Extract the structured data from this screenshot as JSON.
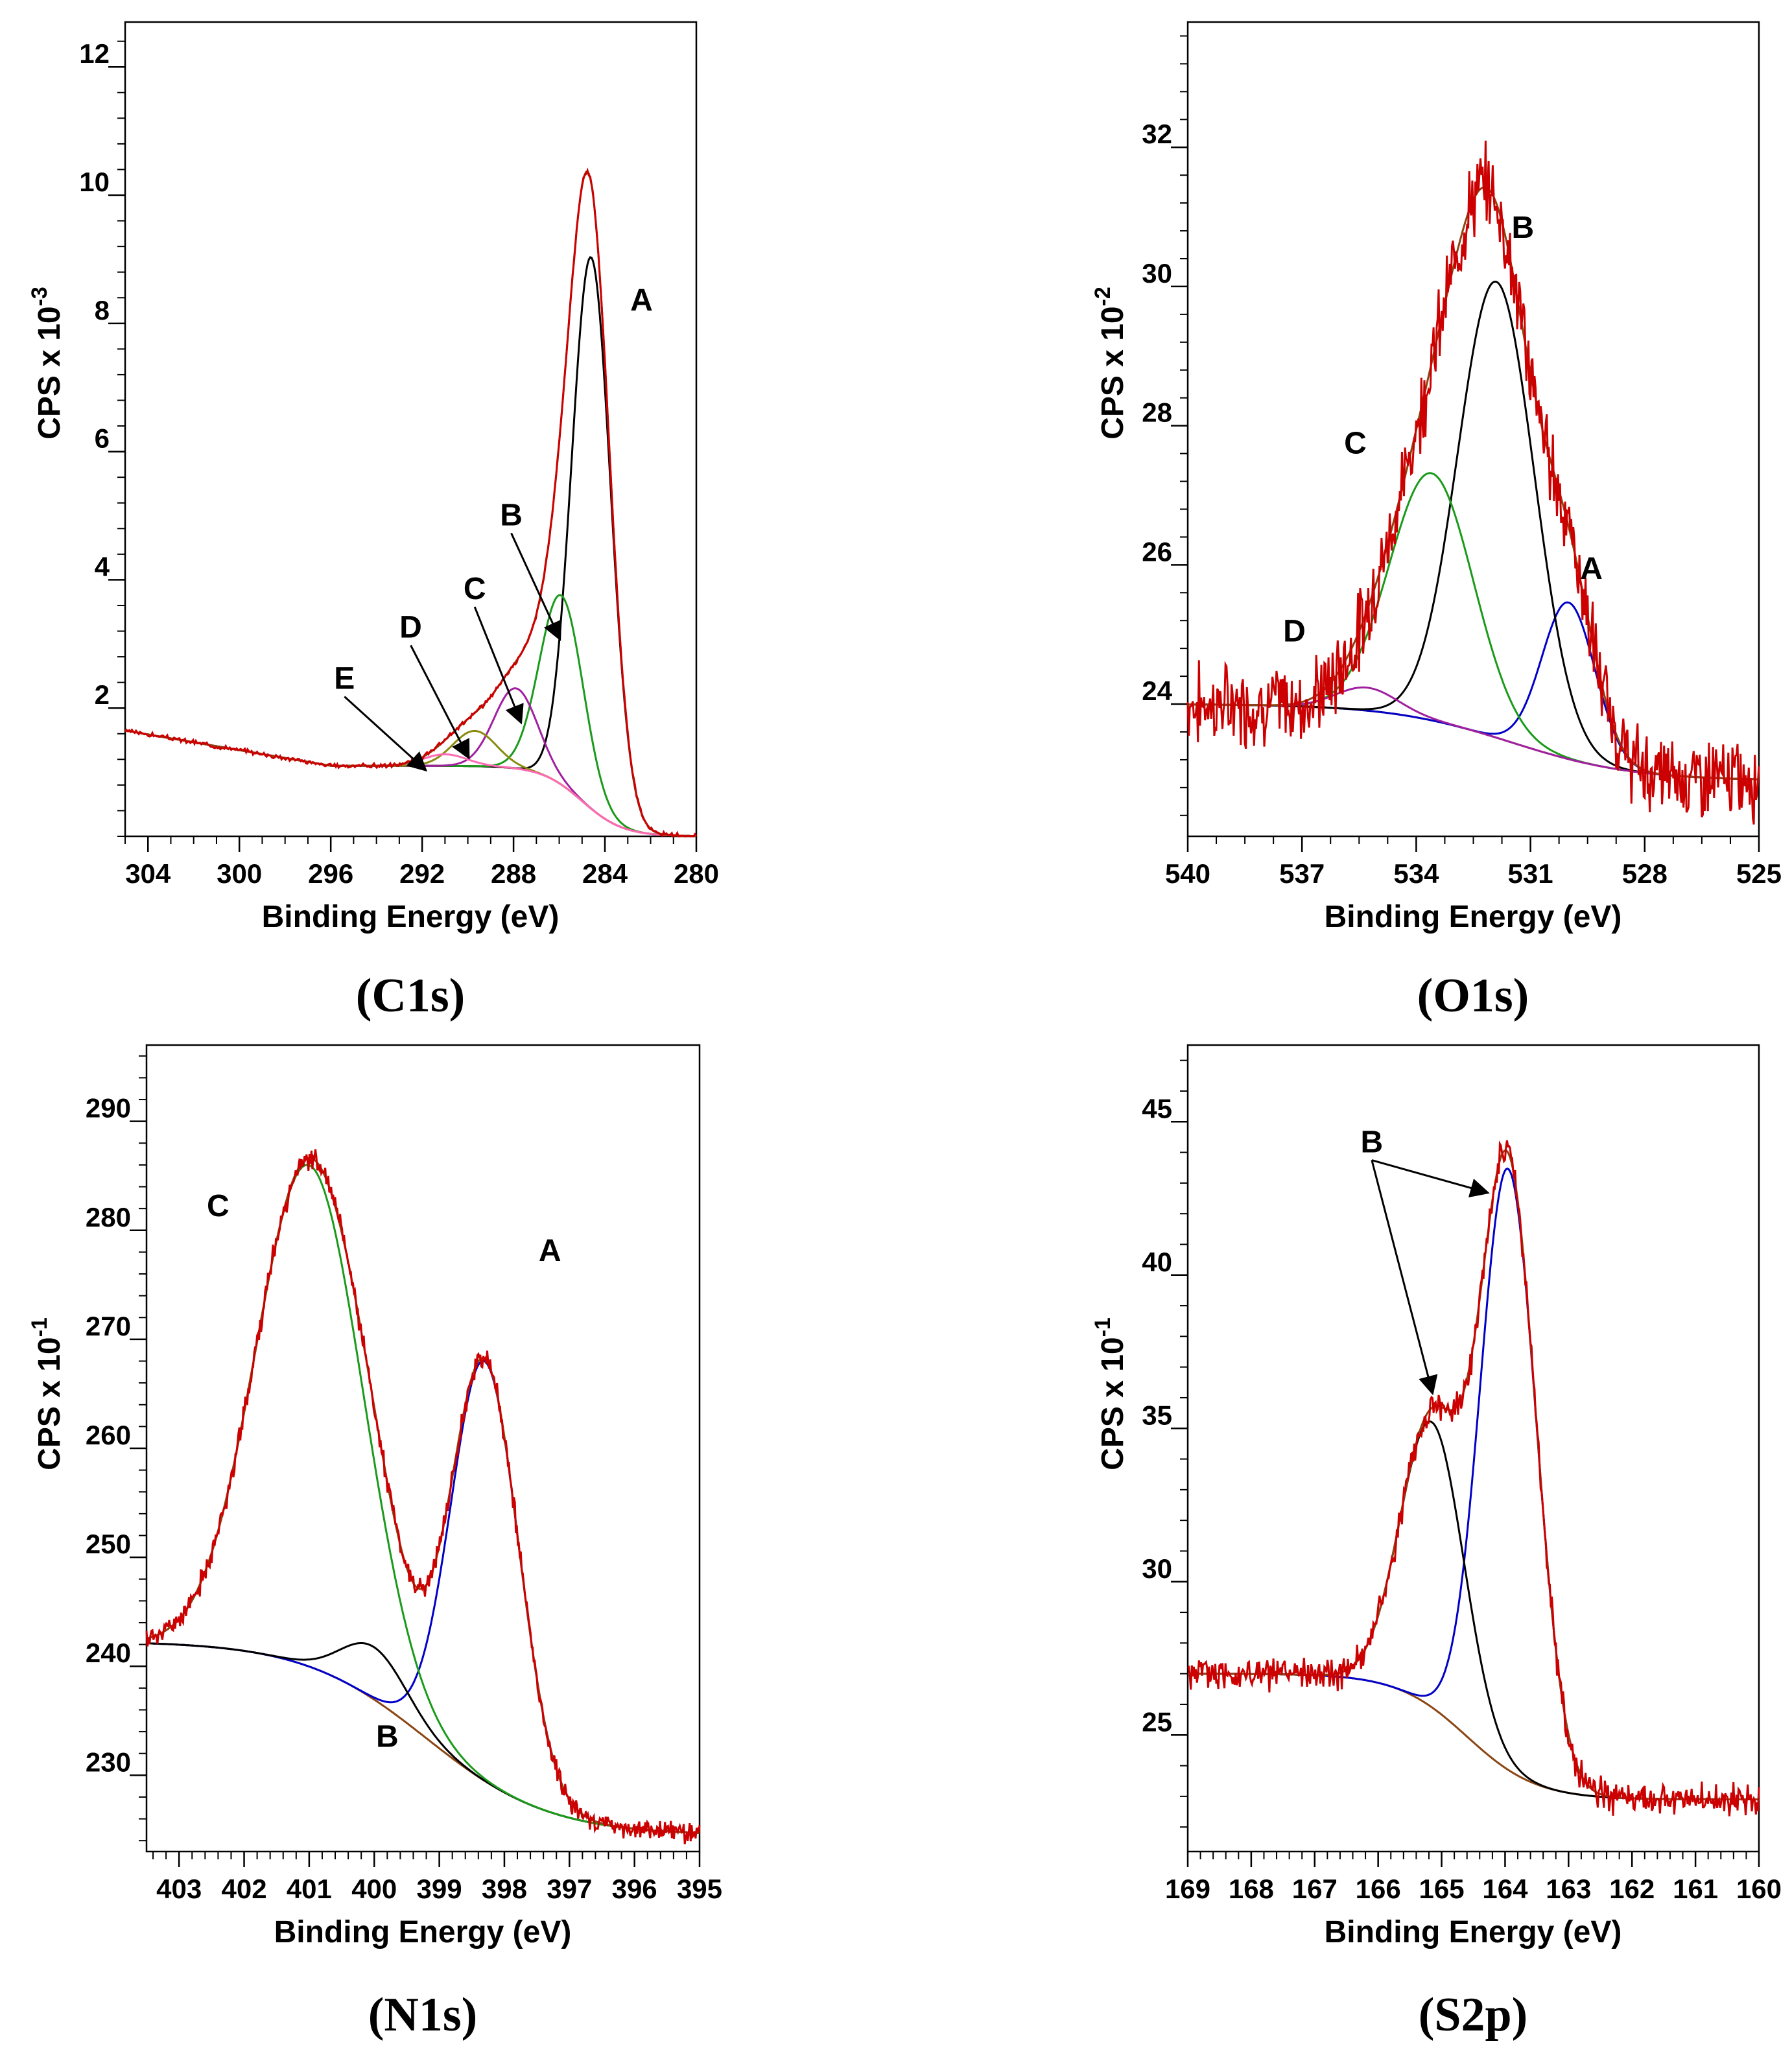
{
  "charts": [
    {
      "id": "c1s",
      "type": "line",
      "caption": "(C1s)",
      "xlabel": "Binding Energy (eV)",
      "ylabel": "CPS x 10",
      "ylabel_exp": "-3",
      "xlim": [
        305,
        280
      ],
      "ylim": [
        0,
        12.7
      ],
      "xticks": [
        304,
        300,
        296,
        292,
        288,
        284,
        280
      ],
      "yticks": [
        2,
        4,
        6,
        8,
        10,
        12
      ],
      "peaks": [
        {
          "label": "A",
          "center": 284.6,
          "height": 8.6,
          "width": 0.85,
          "color": "#000000"
        },
        {
          "label": "B",
          "center": 285.9,
          "height": 2.95,
          "width": 0.95,
          "color": "#1a9a1a"
        },
        {
          "label": "C",
          "center": 287.9,
          "height": 1.25,
          "width": 0.95,
          "color": "#a020a0"
        },
        {
          "label": "D",
          "center": 289.7,
          "height": 0.55,
          "width": 0.95,
          "color": "#8a8a10"
        },
        {
          "label": "E",
          "center": 291.0,
          "height": 0.18,
          "width": 0.95,
          "color": "#ff69b4"
        }
      ],
      "background": {
        "left": 1.1,
        "right": 0.0,
        "step_center": 285.0,
        "step_width": 0.9,
        "slope_from": 296,
        "slope_to": 305,
        "slope_gain": 0.55
      },
      "annotations": [
        {
          "label": "A",
          "at": [
            282.4,
            8.2
          ]
        },
        {
          "label": "B",
          "at": [
            288.1,
            4.85
          ],
          "arrow_to": [
            286.0,
            3.1
          ]
        },
        {
          "label": "C",
          "at": [
            289.7,
            3.7
          ],
          "arrow_to": [
            287.7,
            1.8
          ]
        },
        {
          "label": "D",
          "at": [
            292.5,
            3.1
          ],
          "arrow_to": [
            290.0,
            1.25
          ]
        },
        {
          "label": "E",
          "at": [
            295.4,
            2.3
          ],
          "arrow_to": [
            291.9,
            1.05
          ]
        }
      ]
    },
    {
      "id": "o1s",
      "type": "line",
      "caption": "(O1s)",
      "xlabel": "Binding Energy (eV)",
      "ylabel": "CPS x 10",
      "ylabel_exp": "-2",
      "xlim": [
        540,
        525
      ],
      "ylim": [
        22.1,
        33.8
      ],
      "xticks": [
        540,
        537,
        534,
        531,
        528,
        525
      ],
      "yticks": [
        24,
        26,
        28,
        30,
        32
      ],
      "peaks": [
        {
          "label": "A",
          "center": 530.0,
          "height": 2.25,
          "width": 0.7,
          "color": "#0000c8"
        },
        {
          "label": "B",
          "center": 531.9,
          "height": 6.55,
          "width": 1.0,
          "color": "#000000"
        },
        {
          "label": "C",
          "center": 533.6,
          "height": 3.55,
          "width": 1.1,
          "color": "#1a9a1a"
        },
        {
          "label": "D",
          "center": 535.3,
          "height": 0.33,
          "width": 0.8,
          "color": "#a020a0"
        }
      ],
      "background": {
        "left": 24.0,
        "right": 22.9,
        "step_center": 531.5,
        "step_width": 1.6
      },
      "noise": {
        "level": 0.5,
        "seed": 7
      },
      "annotations": [
        {
          "label": "A",
          "at": [
            529.4,
            25.8
          ]
        },
        {
          "label": "B",
          "at": [
            531.2,
            30.7
          ]
        },
        {
          "label": "C",
          "at": [
            535.6,
            27.6
          ]
        },
        {
          "label": "D",
          "at": [
            537.2,
            24.9
          ]
        }
      ]
    },
    {
      "id": "n1s",
      "type": "line",
      "caption": "(N1s)",
      "xlabel": "Binding Energy (eV)",
      "ylabel": "CPS x 10",
      "ylabel_exp": "-1",
      "xlim": [
        403.5,
        395
      ],
      "ylim": [
        223,
        297
      ],
      "xticks": [
        403,
        402,
        401,
        400,
        399,
        398,
        397,
        396,
        395
      ],
      "yticks": [
        230,
        240,
        250,
        260,
        270,
        280,
        290
      ],
      "peaks": [
        {
          "label": "A",
          "center": 398.3,
          "height": 38.5,
          "width": 0.52,
          "color": "#0000c8"
        },
        {
          "label": "B",
          "center": 400.0,
          "height": 4.8,
          "width": 0.5,
          "color": "#000000"
        },
        {
          "label": "C",
          "center": 401.0,
          "height": 46.0,
          "width": 0.82,
          "color": "#1a9a1a"
        }
      ],
      "background": {
        "left": 242.3,
        "right": 224.5,
        "step_center": 399.2,
        "step_width": 0.95
      },
      "noise": {
        "level": 0.9,
        "seed": 11
      },
      "annotations": [
        {
          "label": "A",
          "at": [
            397.3,
            277.2
          ]
        },
        {
          "label": "B",
          "at": [
            399.8,
            232.6
          ]
        },
        {
          "label": "C",
          "at": [
            402.4,
            281.3
          ]
        }
      ]
    },
    {
      "id": "s2p",
      "type": "line",
      "caption": "(S2p)",
      "xlabel": "Binding Energy (eV)",
      "ylabel": "CPS x 10",
      "ylabel_exp": "-1",
      "xlim": [
        169,
        160
      ],
      "ylim": [
        21.2,
        47.5
      ],
      "xticks": [
        169,
        168,
        167,
        166,
        165,
        164,
        163,
        162,
        161,
        160
      ],
      "yticks": [
        25,
        30,
        35,
        40,
        45
      ],
      "peaks": [
        {
          "label": "B",
          "center": 163.95,
          "height": 19.6,
          "width": 0.44,
          "color": "#0000c8"
        },
        {
          "label": "B",
          "center": 165.15,
          "height": 9.3,
          "width": 0.5,
          "color": "#000000"
        }
      ],
      "background": {
        "left": 27.0,
        "right": 22.9,
        "step_center": 164.6,
        "step_width": 0.55
      },
      "noise": {
        "level": 0.45,
        "seed": 5
      },
      "annotations": [
        {
          "label": "B",
          "at": [
            166.1,
            44.0
          ],
          "arrow_to": [
            165.15,
            36.2
          ],
          "arrow_to2": [
            164.3,
            42.7
          ]
        }
      ]
    }
  ]
}
